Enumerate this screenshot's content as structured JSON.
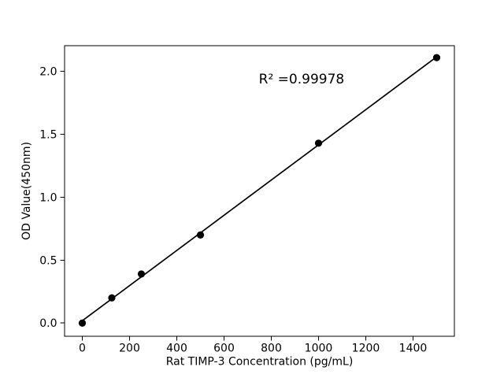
{
  "figure": {
    "background": "#ffffff"
  },
  "chart_data": {
    "type": "scatter",
    "title": "",
    "xlabel": "Rat TIMP-3 Concentration (pg/mL)",
    "ylabel": "OD Value(450nm)",
    "x": [
      0,
      125,
      250,
      500,
      1000,
      1500
    ],
    "y": [
      0.0,
      0.2,
      0.39,
      0.7,
      1.43,
      2.11
    ],
    "fit_line": {
      "x": [
        0,
        1500
      ],
      "y": [
        0.018,
        2.116
      ]
    },
    "annotation": "R² =0.99978",
    "annotation_pos_frac": {
      "x": 0.608,
      "y": 0.886
    },
    "xticks": [
      0,
      200,
      400,
      600,
      800,
      1000,
      1200,
      1400
    ],
    "ytick_labels": [
      "0.0",
      "0.5",
      "1.0",
      "1.5",
      "2.0"
    ],
    "xlim": [
      -75,
      1575
    ],
    "ylim": [
      -0.105,
      2.205
    ],
    "grid": false,
    "legend": "none",
    "marker_color": "#000000",
    "line_color": "#000000",
    "axis_color": "#000000"
  }
}
